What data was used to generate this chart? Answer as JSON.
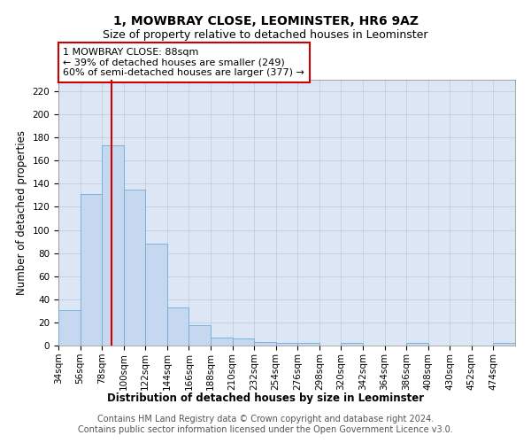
{
  "title1": "1, MOWBRAY CLOSE, LEOMINSTER, HR6 9AZ",
  "title2": "Size of property relative to detached houses in Leominster",
  "xlabel": "Distribution of detached houses by size in Leominster",
  "ylabel": "Number of detached properties",
  "bar_color": "#c5d8f0",
  "bar_edge_color": "#6baed6",
  "grid_color": "#c0c8d8",
  "bg_color": "#dce6f4",
  "vline_color": "#cc0000",
  "vline_x": 88,
  "annotation_text": "1 MOWBRAY CLOSE: 88sqm\n← 39% of detached houses are smaller (249)\n60% of semi-detached houses are larger (377) →",
  "annotation_box_color": "white",
  "annotation_box_edge": "#cc0000",
  "bin_edges": [
    34,
    56,
    78,
    100,
    122,
    144,
    166,
    188,
    210,
    232,
    254,
    276,
    298,
    320,
    342,
    364,
    386,
    408,
    430,
    452,
    474
  ],
  "bar_heights": [
    31,
    131,
    173,
    135,
    88,
    33,
    18,
    7,
    6,
    3,
    2,
    2,
    0,
    2,
    0,
    0,
    2,
    0,
    0,
    0,
    2
  ],
  "ylim": [
    0,
    230
  ],
  "yticks": [
    0,
    20,
    40,
    60,
    80,
    100,
    120,
    140,
    160,
    180,
    200,
    220
  ],
  "footer_text": "Contains HM Land Registry data © Crown copyright and database right 2024.\nContains public sector information licensed under the Open Government Licence v3.0.",
  "title1_fontsize": 10,
  "title2_fontsize": 9,
  "xlabel_fontsize": 8.5,
  "ylabel_fontsize": 8.5,
  "tick_fontsize": 7.5,
  "annotation_fontsize": 8,
  "footer_fontsize": 7
}
